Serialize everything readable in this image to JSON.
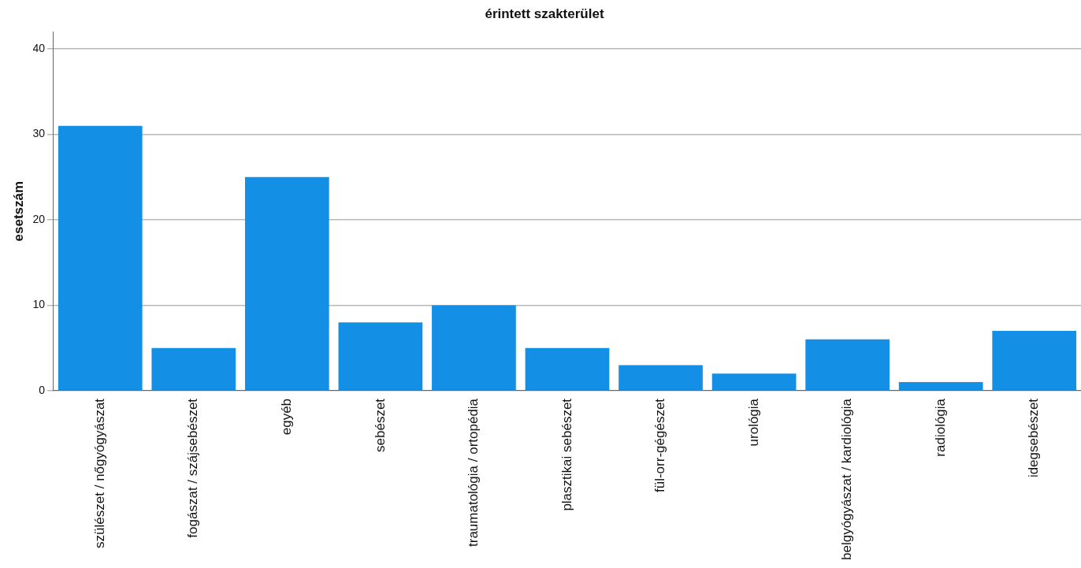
{
  "chart_data": {
    "type": "bar",
    "title": "érintett szakterület",
    "ylabel": "esetszám",
    "categories": [
      "szülészet / nőgyógyászat",
      "fogászat / szájsebészet",
      "egyéb",
      "sebészet",
      "traumatológia / ortopédia",
      "plasztikai sebészet",
      "fül-orr-gégészet",
      "urológia",
      "belgyógyászat / kardiológia",
      "radiológia",
      "idegsebészet"
    ],
    "values": [
      31,
      5,
      25,
      8,
      10,
      5,
      3,
      2,
      6,
      1,
      7
    ],
    "color": "#138fe6",
    "ylim": [
      0,
      42
    ],
    "yticks": [
      0,
      10,
      20,
      30,
      40
    ],
    "grid": "y",
    "legend": false
  }
}
